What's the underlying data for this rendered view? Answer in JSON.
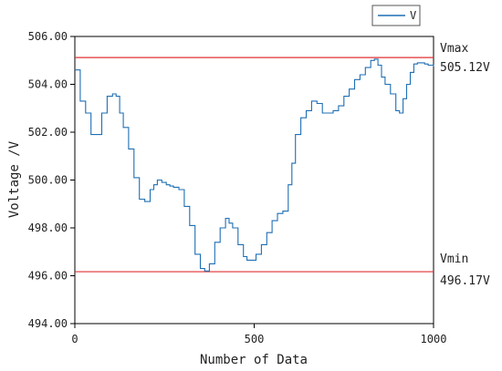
{
  "chart_data": {
    "type": "line",
    "title": "",
    "xlabel": "Number of Data",
    "ylabel": "Voltage  /V",
    "xlim": [
      0,
      1000
    ],
    "ylim": [
      494,
      506
    ],
    "xticks": [
      "0",
      "500",
      "1000"
    ],
    "yticks": [
      "494.00",
      "496.00",
      "498.00",
      "500.00",
      "502.00",
      "504.00",
      "506.00"
    ],
    "grid": false,
    "legend_position": "top-right, above plot",
    "series": [
      {
        "name": "V",
        "color": "#1f6fb4",
        "x": [
          0,
          15,
          30,
          45,
          60,
          75,
          90,
          105,
          115,
          125,
          135,
          150,
          165,
          180,
          195,
          210,
          230,
          255,
          275,
          290,
          305,
          320,
          335,
          350,
          362,
          375,
          390,
          405,
          420,
          440,
          455,
          470,
          480,
          492,
          505,
          520,
          535,
          550,
          565,
          580,
          595,
          605,
          615,
          630,
          645,
          660,
          675,
          690,
          705,
          720,
          735,
          750,
          765,
          780,
          795,
          810,
          825,
          835,
          845,
          855,
          865,
          880,
          895,
          905,
          915,
          925,
          935,
          945,
          955,
          965,
          975,
          985,
          1000
        ],
        "values": [
          504.6,
          503.3,
          502.8,
          501.9,
          501.9,
          502.8,
          503.5,
          503.6,
          503.5,
          502.8,
          502.2,
          501.3,
          500.1,
          499.2,
          499.1,
          499.6,
          500.0,
          499.8,
          499.7,
          499.6,
          498.9,
          498.1,
          496.9,
          496.3,
          496.2,
          496.5,
          497.4,
          498.0,
          498.4,
          498.0,
          497.3,
          496.8,
          496.65,
          496.65,
          496.9,
          497.3,
          497.8,
          498.3,
          498.6,
          498.7,
          499.8,
          500.7,
          501.9,
          502.6,
          502.9,
          503.3,
          503.2,
          502.8,
          502.8,
          502.9,
          503.1,
          503.5,
          503.8,
          504.2,
          504.4,
          504.7,
          505.0,
          505.05,
          504.8,
          504.3,
          504.0,
          503.6,
          502.9,
          502.8,
          503.4,
          504.0,
          504.5,
          504.85,
          504.9,
          504.9,
          504.85,
          504.8,
          504.75
        ]
      }
    ],
    "reference_lines": [
      {
        "name": "Vmax",
        "value": 505.12,
        "label_name": "Vmax",
        "label_value": "505.12V",
        "color": "#e03030"
      },
      {
        "name": "Vmin",
        "value": 496.17,
        "label_name": "Vmin",
        "label_value": "496.17V",
        "color": "#e03030"
      }
    ]
  }
}
